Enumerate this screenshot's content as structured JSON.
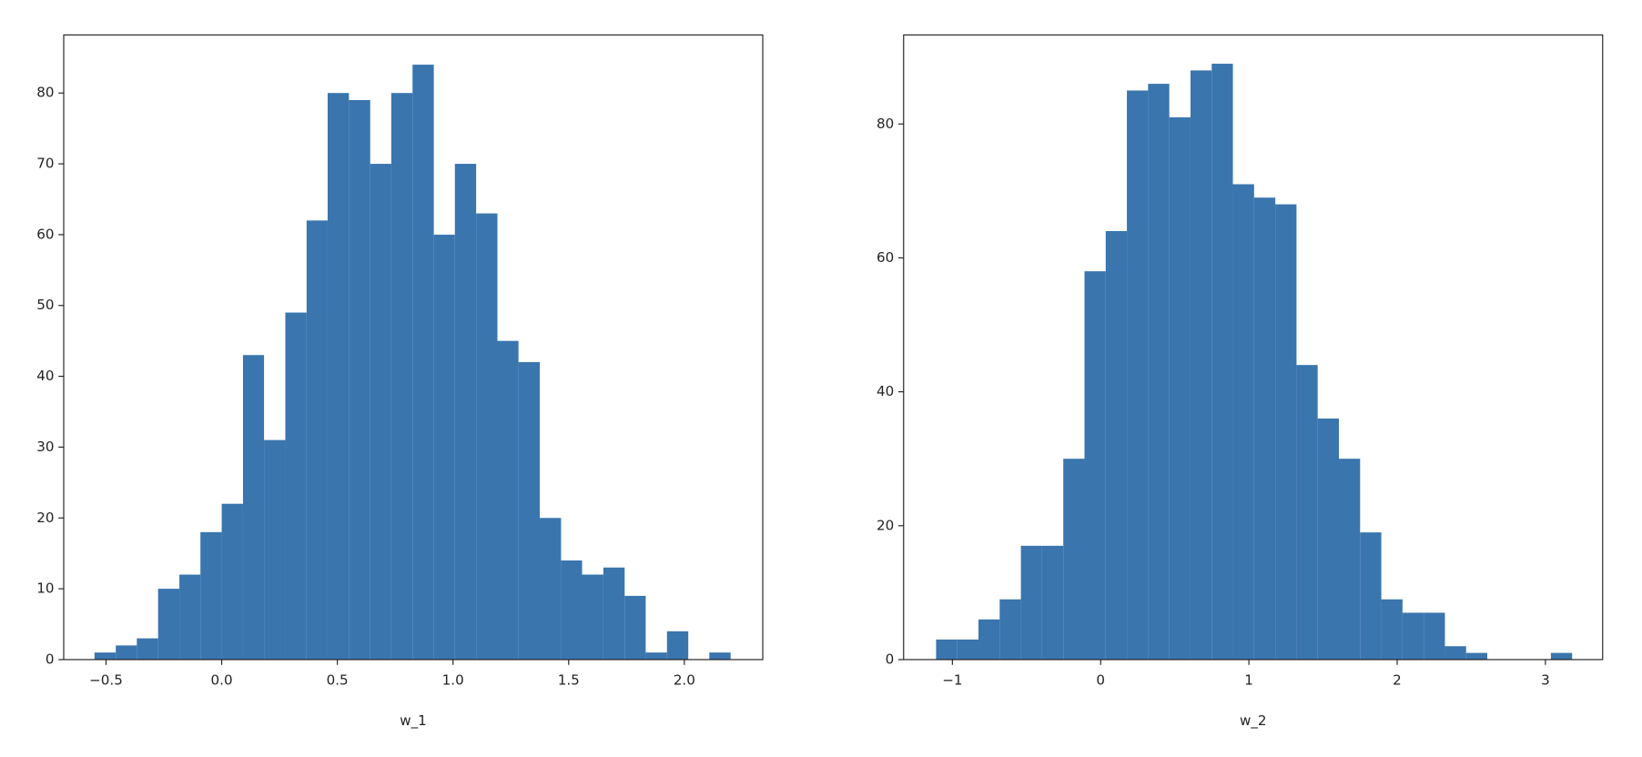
{
  "chart_data": [
    {
      "type": "histogram",
      "xlabel": "w_1",
      "color": "#3a75ae",
      "bins": [
        -0.55,
        -0.458,
        -0.367,
        -0.275,
        -0.183,
        -0.092,
        0.0,
        0.092,
        0.183,
        0.275,
        0.367,
        0.458,
        0.55,
        0.642,
        0.733,
        0.825,
        0.917,
        1.008,
        1.1,
        1.192,
        1.283,
        1.375,
        1.467,
        1.558,
        1.65,
        1.742,
        1.833,
        1.925,
        2.017,
        2.108,
        2.2
      ],
      "values": [
        1,
        2,
        3,
        10,
        12,
        18,
        22,
        43,
        31,
        49,
        62,
        80,
        79,
        70,
        80,
        84,
        60,
        70,
        63,
        45,
        42,
        20,
        14,
        12,
        13,
        9,
        1,
        4,
        0,
        1
      ],
      "xlim": [
        -0.683,
        2.339
      ],
      "ylim": [
        0,
        88.2
      ],
      "xticks": [
        {
          "value": -0.5,
          "label": "−0.5"
        },
        {
          "value": 0.0,
          "label": "0.0"
        },
        0.5,
        {
          "value": 1.0,
          "label": "1.0"
        },
        1.5,
        {
          "value": 2.0,
          "label": "2.0"
        }
      ],
      "yticks": [
        0,
        10,
        20,
        30,
        40,
        50,
        60,
        70,
        80
      ]
    },
    {
      "type": "histogram",
      "xlabel": "w_2",
      "color": "#3a75ae",
      "bins": [
        -1.11,
        -0.967,
        -0.824,
        -0.681,
        -0.538,
        -0.395,
        -0.252,
        -0.109,
        0.034,
        0.177,
        0.32,
        0.463,
        0.606,
        0.749,
        0.892,
        1.035,
        1.178,
        1.321,
        1.464,
        1.607,
        1.75,
        1.893,
        2.036,
        2.179,
        2.322,
        2.465,
        2.608,
        2.751,
        2.894,
        3.037,
        3.18
      ],
      "values": [
        3,
        3,
        6,
        9,
        17,
        17,
        30,
        58,
        64,
        85,
        86,
        81,
        88,
        89,
        71,
        69,
        68,
        44,
        36,
        30,
        19,
        9,
        7,
        7,
        2,
        1,
        0,
        0,
        0,
        1
      ],
      "xlim": [
        -1.329,
        3.386
      ],
      "ylim": [
        0,
        93.3
      ],
      "xticks": [
        {
          "value": -1,
          "label": "−1"
        },
        0,
        1,
        2,
        3
      ],
      "yticks": [
        0,
        20,
        40,
        60,
        80
      ]
    }
  ]
}
